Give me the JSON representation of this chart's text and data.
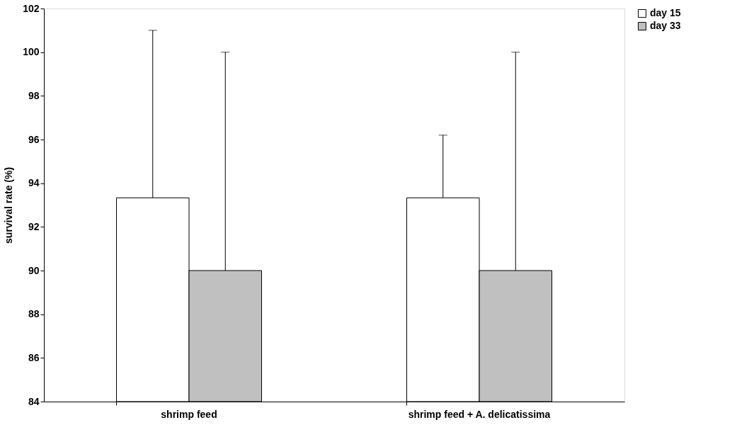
{
  "chart_data": {
    "type": "bar",
    "ylabel": "survival rate (%)",
    "categories": [
      "shrimp feed",
      "shrimp feed + A. delicatissima"
    ],
    "series": [
      {
        "name": "day 15",
        "color": "#ffffff",
        "values": [
          93.33,
          93.33
        ],
        "errors": [
          [
            93.33,
            101.0
          ],
          [
            93.33,
            96.2
          ]
        ]
      },
      {
        "name": "day 33",
        "color": "#c0c0c0",
        "values": [
          90.0,
          90.0
        ],
        "errors": [
          [
            90.0,
            100.0
          ],
          [
            90.0,
            100.0
          ]
        ]
      }
    ],
    "ylim": [
      84,
      102
    ],
    "yticks": [
      84,
      86,
      88,
      90,
      92,
      94,
      96,
      98,
      100,
      102
    ],
    "grid": false,
    "legend": "right"
  }
}
